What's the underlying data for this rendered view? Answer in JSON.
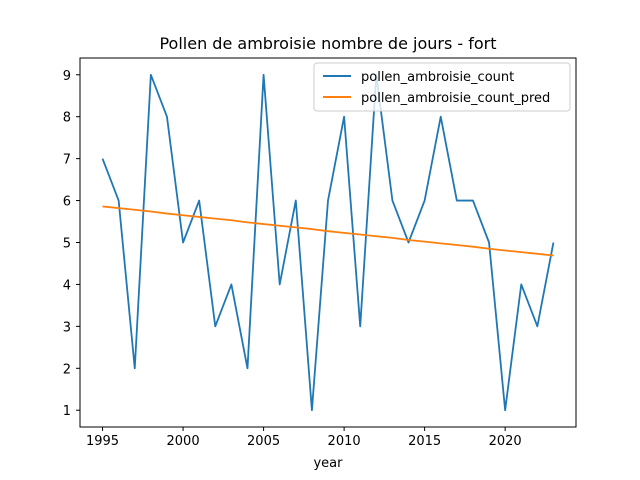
{
  "chart_data": {
    "type": "line",
    "title": "Pollen de ambroisie nombre de jours - fort",
    "xlabel": "year",
    "ylabel": "",
    "xlim": [
      1993.6,
      2024.4
    ],
    "ylim": [
      0.6,
      9.4
    ],
    "x_ticks": [
      1995,
      2000,
      2005,
      2010,
      2015,
      2020
    ],
    "y_ticks": [
      1,
      2,
      3,
      4,
      5,
      6,
      7,
      8,
      9
    ],
    "grid": false,
    "legend_position": "top-right",
    "x": [
      1995,
      1996,
      1997,
      1998,
      1999,
      2000,
      2001,
      2002,
      2003,
      2004,
      2005,
      2006,
      2007,
      2008,
      2009,
      2010,
      2011,
      2012,
      2013,
      2014,
      2015,
      2016,
      2017,
      2018,
      2019,
      2020,
      2021,
      2022,
      2023
    ],
    "series": [
      {
        "name": "pollen_ambroisie_count",
        "color": "#1f77b4",
        "values": [
          7,
          6,
          2,
          9,
          8,
          5,
          6,
          3,
          4,
          2,
          9,
          4,
          6,
          1,
          6,
          8,
          3,
          9,
          6,
          5,
          6,
          8,
          6,
          6,
          5,
          1,
          4,
          3,
          5
        ]
      },
      {
        "name": "pollen_ambroisie_count_pred",
        "color": "#ff7f0e",
        "values": [
          5.86,
          5.82,
          5.78,
          5.74,
          5.69,
          5.65,
          5.61,
          5.57,
          5.53,
          5.48,
          5.44,
          5.4,
          5.36,
          5.32,
          5.27,
          5.23,
          5.19,
          5.15,
          5.11,
          5.06,
          5.02,
          4.98,
          4.94,
          4.9,
          4.85,
          4.81,
          4.77,
          4.73,
          4.69
        ]
      }
    ]
  }
}
